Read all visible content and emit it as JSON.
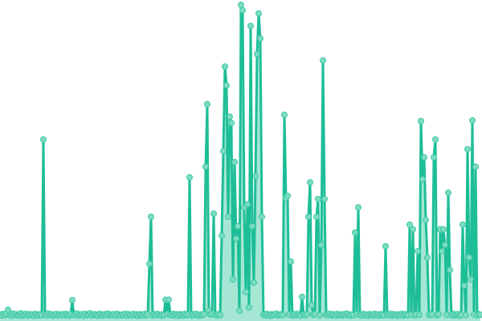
{
  "chart_data": {
    "type": "area",
    "title": "",
    "xlabel": "",
    "ylabel": "",
    "ylim": [
      0,
      100
    ],
    "grid": false,
    "legend": "none",
    "colors": {
      "line": "#1dbe97",
      "area": "#8fe0cb",
      "point_fill": "#7ddcc2",
      "point_stroke": "#3cc9a4"
    },
    "series": [
      {
        "values": [
          0.8,
          0.5,
          1.0,
          0.6,
          0.9,
          2.3,
          0.7,
          0.4,
          1.1,
          0.6,
          0.9,
          0.5,
          0.8,
          1.2,
          0.4,
          0.7,
          1.0,
          0.5,
          0.9,
          0.6,
          0.8,
          0.4,
          1.0,
          0.7,
          0.5,
          0.9,
          0.6,
          56.7,
          0.8,
          0.5,
          1.1,
          0.6,
          0.9,
          0.4,
          0.7,
          1.0,
          0.5,
          0.8,
          0.6,
          0.9,
          0.5,
          1.0,
          0.7,
          0.4,
          0.9,
          5.4,
          0.6,
          0.8,
          1.1,
          0.5,
          0.7,
          0.9,
          0.4,
          1.0,
          0.6,
          0.8,
          1.2,
          0.5,
          0.7,
          0.9,
          0.6,
          0.4,
          1.0,
          0.8,
          0.5,
          0.9,
          0.7,
          1.1,
          0.5,
          0.8,
          0.6,
          0.9,
          0.4,
          1.0,
          0.7,
          0.5,
          0.8,
          0.6,
          1.0,
          0.4,
          0.9,
          0.7,
          0.5,
          1.0,
          0.6,
          0.8,
          0.4,
          0.9,
          0.7,
          0.5,
          1.0,
          0.6,
          0.8,
          17,
          32,
          0.5,
          0.9,
          0.6,
          1.0,
          0.7,
          0.4,
          0.8,
          0.6,
          5.5,
          0.9,
          5.5,
          0.7,
          0.5,
          1.0,
          0.6,
          0.8,
          0.4,
          0.9,
          0.7,
          0.5,
          1.0,
          0.6,
          0.8,
          44.6,
          0.5,
          0.9,
          0.6,
          1.0,
          0.7,
          0.4,
          0.8,
          0.6,
          0.9,
          48,
          68,
          2,
          0.8,
          1.0,
          33,
          0.7,
          0.5,
          0.9,
          0.6,
          26,
          53,
          80,
          74,
          32,
          64,
          62,
          12,
          49.5,
          25,
          29,
          2,
          99.7,
          98,
          35,
          8,
          36,
          3,
          93,
          29,
          11,
          45,
          84,
          97,
          89,
          32,
          0.8,
          0.5,
          1.0,
          0.7,
          0.4,
          0.9,
          0.6,
          0.8,
          1.1,
          0.5,
          0.7,
          0.9,
          0.6,
          64.6,
          38,
          38.7,
          0.8,
          17.7,
          0.5,
          0.9,
          0.6,
          1.0,
          0.7,
          0.4,
          6.4,
          0.8,
          0.6,
          0.9,
          32,
          43,
          3.8,
          0.7,
          1.0,
          32,
          37.7,
          0.5,
          23,
          82,
          37.7,
          0.8,
          0.6,
          1.0,
          0.5,
          0.9,
          0.7,
          0.4,
          1.0,
          0.6,
          0.8,
          0.5,
          0.9,
          0.7,
          1.1,
          0.6,
          0.4,
          0.8,
          0.6,
          27,
          0.9,
          35,
          0.7,
          0.5,
          1.0,
          0.6,
          0.8,
          0.4,
          0.9,
          0.7,
          0.5,
          1.0,
          0.6,
          0.8,
          0.4,
          0.9,
          0.7,
          0.5,
          22.6,
          0.8,
          0.6,
          1.0,
          0.5,
          0.9,
          0.7,
          0.4,
          0.8,
          0.6,
          1.0,
          0.5,
          0.9,
          0.7,
          0.6,
          29.5,
          0.8,
          28,
          0.5,
          0.9,
          21,
          0.7,
          62.6,
          44,
          51,
          31,
          19,
          0.6,
          1.0,
          0.8,
          51,
          56.7,
          0.5,
          0.9,
          28,
          21,
          28,
          23,
          0.7,
          39.7,
          15,
          0.6,
          1.0,
          0.5,
          0.8,
          0.9,
          0.4,
          0.7,
          29.5,
          10,
          0.6,
          53.6,
          19,
          12,
          62.8,
          0.8,
          48,
          0.5,
          0.9,
          0.7
        ]
      }
    ]
  }
}
